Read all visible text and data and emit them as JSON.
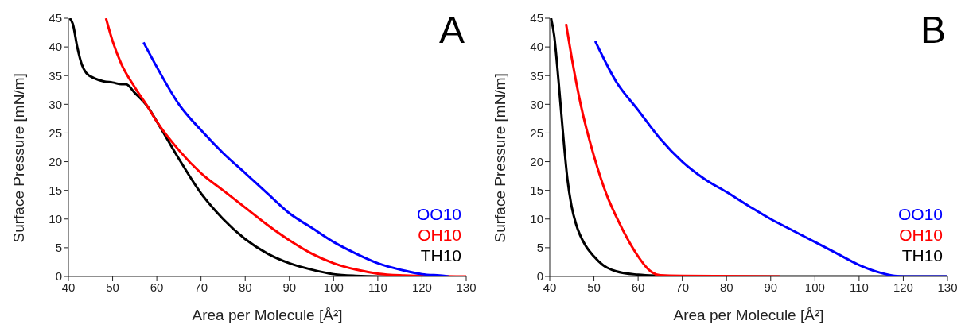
{
  "chart_data": [
    {
      "type": "line",
      "title": "A",
      "xlabel": "Area per Molecule [Å²]",
      "ylabel": "Surface Pressure [mN/m]",
      "xlim": [
        40,
        130
      ],
      "xticks": [
        40,
        50,
        60,
        70,
        80,
        90,
        100,
        110,
        120,
        130
      ],
      "ylim": [
        0,
        45
      ],
      "yticks": [
        0,
        5,
        10,
        15,
        20,
        25,
        30,
        35,
        40,
        45
      ],
      "grid": false,
      "legend": "bottom right",
      "marker": "none",
      "line_style": "solid",
      "series": [
        {
          "name": "OO10",
          "color": "#0000ff",
          "x": [
            57,
            60,
            65,
            70,
            75,
            80,
            85,
            90,
            95,
            100,
            105,
            110,
            115,
            120,
            125,
            126
          ],
          "values": [
            40.8,
            36.5,
            30,
            25.5,
            21.5,
            18,
            14.5,
            11,
            8.5,
            6,
            4,
            2.3,
            1.2,
            0.4,
            0.1,
            0
          ]
        },
        {
          "name": "OH10",
          "color": "#ff0000",
          "x": [
            48.5,
            50,
            52,
            55,
            58,
            60,
            65,
            70,
            75,
            80,
            85,
            90,
            95,
            100,
            105,
            110,
            115,
            120,
            130
          ],
          "values": [
            45,
            41,
            37,
            33,
            29.5,
            27,
            22,
            18,
            15,
            12,
            9,
            6.3,
            4,
            2.3,
            1.2,
            0.5,
            0.2,
            0.1,
            0
          ]
        },
        {
          "name": "TH10",
          "color": "#000000",
          "x": [
            40.3,
            41,
            42,
            43,
            44,
            46,
            48,
            50,
            52,
            53,
            55,
            58,
            60,
            65,
            70,
            75,
            80,
            85,
            90,
            95,
            100,
            105,
            110,
            120
          ],
          "values": [
            45,
            44,
            40,
            37,
            35.5,
            34.5,
            34,
            33.8,
            33.5,
            33.5,
            32,
            29.5,
            27,
            20.5,
            14.5,
            10,
            6.5,
            4,
            2.3,
            1.2,
            0.4,
            0.1,
            0,
            0
          ]
        }
      ]
    },
    {
      "type": "line",
      "title": "B",
      "xlabel": "Area per Molecule [Å²]",
      "ylabel": "Surface Pressure [mN/m]",
      "xlim": [
        40,
        130
      ],
      "xticks": [
        40,
        50,
        60,
        70,
        80,
        90,
        100,
        110,
        120,
        130
      ],
      "ylim": [
        0,
        45
      ],
      "yticks": [
        0,
        5,
        10,
        15,
        20,
        25,
        30,
        35,
        40,
        45
      ],
      "grid": false,
      "legend": "bottom right",
      "marker": "none",
      "line_style": "solid",
      "series": [
        {
          "name": "OO10",
          "color": "#0000ff",
          "x": [
            50.3,
            55,
            60,
            65,
            70,
            75,
            80,
            85,
            90,
            95,
            100,
            105,
            110,
            115,
            118,
            120,
            130
          ],
          "values": [
            41,
            34,
            29,
            24,
            20,
            17,
            14.7,
            12.3,
            10,
            8,
            6,
            4,
            2,
            0.6,
            0.1,
            0,
            0
          ]
        },
        {
          "name": "OH10",
          "color": "#ff0000",
          "x": [
            43.7,
            45,
            47,
            50,
            53,
            55,
            58,
            60,
            62,
            63,
            65,
            70,
            92
          ],
          "values": [
            44,
            38,
            30,
            21,
            14,
            10.5,
            6,
            3.5,
            1.5,
            0.8,
            0.2,
            0.1,
            0
          ]
        },
        {
          "name": "TH10",
          "color": "#000000",
          "x": [
            40.3,
            41,
            42,
            43,
            44,
            45,
            46,
            48,
            50,
            52,
            55,
            60,
            65,
            70,
            130
          ],
          "values": [
            45,
            42,
            34,
            25,
            17,
            12,
            9,
            5.5,
            3.5,
            2,
            0.9,
            0.3,
            0.1,
            0,
            0
          ]
        }
      ]
    }
  ]
}
